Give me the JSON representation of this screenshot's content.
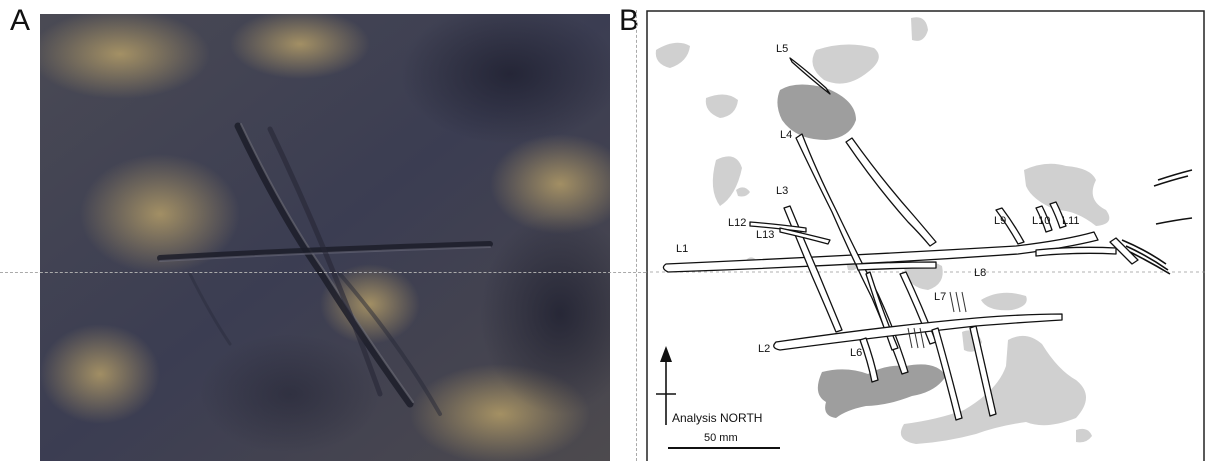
{
  "panels": {
    "a": {
      "letter": "A"
    },
    "b": {
      "letter": "B"
    }
  },
  "tracing": {
    "line_labels": [
      "L1",
      "L2",
      "L3",
      "L4",
      "L5",
      "L6",
      "L7",
      "L8",
      "L9",
      "L10",
      "L11",
      "L12",
      "L13"
    ],
    "north_label": "Analysis NORTH",
    "scale_label": "50 mm"
  },
  "colors": {
    "rock_dark": "#3a3d52",
    "rock_mid": "#555563",
    "ochre": "#b59a57",
    "residue_light": "#d0d0d0",
    "residue_dark": "#9e9e9e"
  }
}
